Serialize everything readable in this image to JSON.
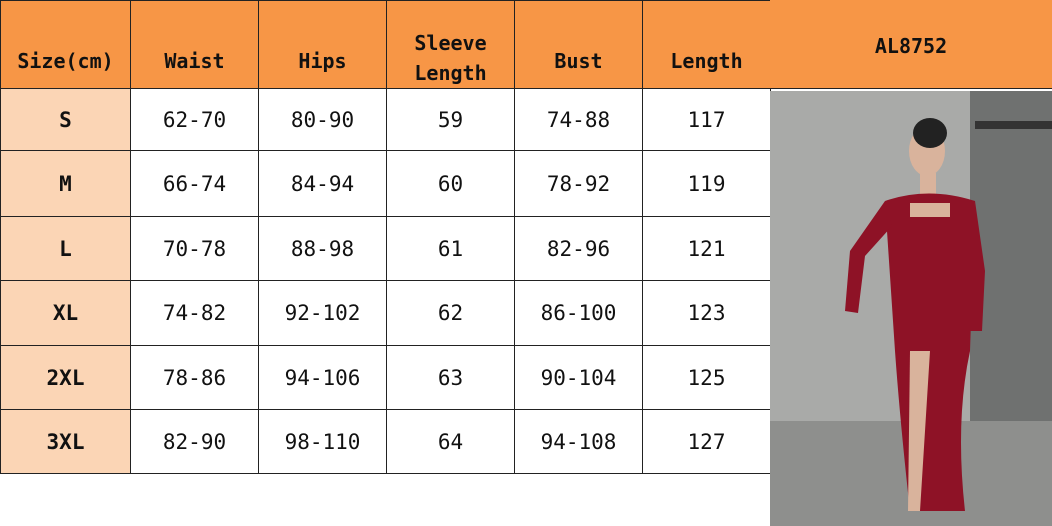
{
  "product_code": "AL8752",
  "table": {
    "headers": [
      "Size(cm)",
      "Waist",
      "Hips",
      "Sleeve Length",
      "Bust",
      "Length"
    ],
    "rows": [
      [
        "S",
        "62-70",
        "80-90",
        "59",
        "74-88",
        "117"
      ],
      [
        "M",
        "66-74",
        "84-94",
        "60",
        "78-92",
        "119"
      ],
      [
        "L",
        "70-78",
        "88-98",
        "61",
        "82-96",
        "121"
      ],
      [
        "XL",
        "74-82",
        "92-102",
        "62",
        "86-100",
        "123"
      ],
      [
        "2XL",
        "78-86",
        "94-106",
        "63",
        "90-104",
        "125"
      ],
      [
        "3XL",
        "82-90",
        "98-110",
        "64",
        "94-108",
        "127"
      ]
    ]
  },
  "colors": {
    "header": "#F79646",
    "size_column": "#FBD5B5",
    "dress": "#8E1226"
  }
}
